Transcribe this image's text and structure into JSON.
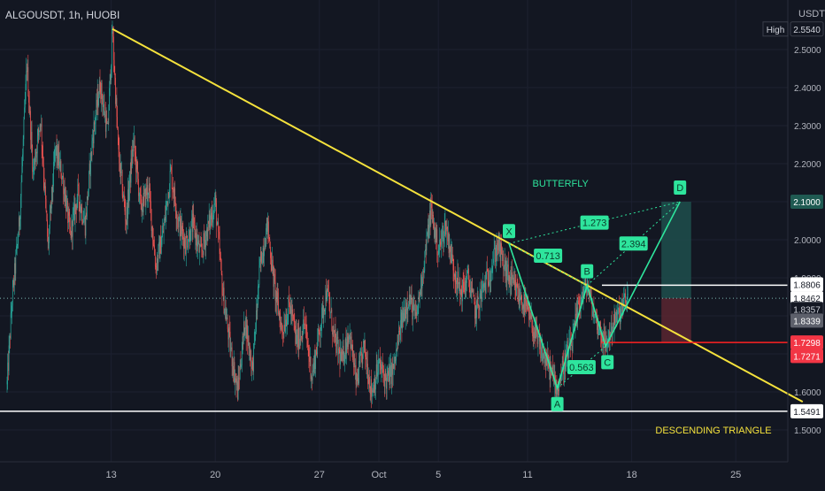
{
  "header": {
    "symbol_line": "ALGOUSDT, 1h, HUOBI",
    "currency": "USDT"
  },
  "colors": {
    "background": "#131722",
    "candle_up": "#26a69a",
    "candle_down": "#ef5350",
    "trendline": "#f5e23c",
    "pattern": "#2ee59d",
    "pattern_label_bg": "#2ee59d",
    "support_line": "#ffffff",
    "stop_line": "#ff2222",
    "target_zone": "#1f4f4c",
    "stop_zone": "#5a2630",
    "axis_text": "#b2b5be"
  },
  "chart_data": {
    "type": "candlestick",
    "title": "ALGOUSDT, 1h, HUOBI",
    "ylim": [
      1.4,
      2.62
    ],
    "y_ticks": [
      1.5,
      1.6,
      1.7,
      1.8,
      1.9,
      2.0,
      2.1,
      2.2,
      2.3,
      2.4,
      2.5
    ],
    "y_tick_labels": [
      "1.5000",
      "1.6000",
      "1.7000",
      "1.8000",
      "1.9000",
      "2.0000",
      "2.1000",
      "2.2000",
      "2.3000",
      "2.4000",
      "2.5000"
    ],
    "x_ticks": [
      "13",
      "20",
      "27",
      "Oct",
      "5",
      "11",
      "18",
      "25"
    ],
    "x_range": [
      "2021-09-06",
      "2021-10-30"
    ],
    "x_tick_dates": [
      "2021-09-13",
      "2021-09-20",
      "2021-09-27",
      "2021-10-01",
      "2021-10-05",
      "2021-10-11",
      "2021-10-18",
      "2021-10-25"
    ],
    "price_path": [
      [
        "2021-09-06T00:00",
        1.62
      ],
      [
        "2021-09-06T08:00",
        1.84
      ],
      [
        "2021-09-06T20:00",
        2.05
      ],
      [
        "2021-09-07T08:00",
        2.46
      ],
      [
        "2021-09-07T18:00",
        2.18
      ],
      [
        "2021-09-08T06:00",
        2.32
      ],
      [
        "2021-09-08T18:00",
        1.98
      ],
      [
        "2021-09-09T06:00",
        2.24
      ],
      [
        "2021-09-09T18:00",
        2.16
      ],
      [
        "2021-09-10T06:00",
        2.01
      ],
      [
        "2021-09-10T18:00",
        2.12
      ],
      [
        "2021-09-11T06:00",
        2.04
      ],
      [
        "2021-09-11T18:00",
        2.27
      ],
      [
        "2021-09-12T06:00",
        2.41
      ],
      [
        "2021-09-12T18:00",
        2.28
      ],
      [
        "2021-09-13T02:00",
        2.55
      ],
      [
        "2021-09-13T12:00",
        2.22
      ],
      [
        "2021-09-14T00:00",
        2.05
      ],
      [
        "2021-09-14T12:00",
        2.26
      ],
      [
        "2021-09-15T00:00",
        2.08
      ],
      [
        "2021-09-15T12:00",
        2.14
      ],
      [
        "2021-09-16T00:00",
        1.93
      ],
      [
        "2021-09-16T12:00",
        2.02
      ],
      [
        "2021-09-17T00:00",
        2.18
      ],
      [
        "2021-09-17T12:00",
        2.05
      ],
      [
        "2021-09-18T00:00",
        1.99
      ],
      [
        "2021-09-18T12:00",
        2.04
      ],
      [
        "2021-09-19T00:00",
        1.96
      ],
      [
        "2021-09-19T12:00",
        2.03
      ],
      [
        "2021-09-20T00:00",
        2.1
      ],
      [
        "2021-09-20T12:00",
        1.86
      ],
      [
        "2021-09-21T00:00",
        1.72
      ],
      [
        "2021-09-21T12:00",
        1.6
      ],
      [
        "2021-09-22T00:00",
        1.79
      ],
      [
        "2021-09-22T12:00",
        1.66
      ],
      [
        "2021-09-23T00:00",
        1.93
      ],
      [
        "2021-09-23T12:00",
        2.04
      ],
      [
        "2021-09-24T00:00",
        1.87
      ],
      [
        "2021-09-24T12:00",
        1.76
      ],
      [
        "2021-09-25T00:00",
        1.83
      ],
      [
        "2021-09-25T12:00",
        1.73
      ],
      [
        "2021-09-26T00:00",
        1.78
      ],
      [
        "2021-09-26T12:00",
        1.64
      ],
      [
        "2021-09-27T00:00",
        1.76
      ],
      [
        "2021-09-27T12:00",
        1.87
      ],
      [
        "2021-09-28T00:00",
        1.74
      ],
      [
        "2021-09-28T12:00",
        1.68
      ],
      [
        "2021-09-29T00:00",
        1.76
      ],
      [
        "2021-09-29T12:00",
        1.62
      ],
      [
        "2021-09-30T00:00",
        1.72
      ],
      [
        "2021-09-30T12:00",
        1.6
      ],
      [
        "2021-10-01T00:00",
        1.67
      ],
      [
        "2021-10-01T12:00",
        1.63
      ],
      [
        "2021-10-02T00:00",
        1.66
      ],
      [
        "2021-10-02T12:00",
        1.78
      ],
      [
        "2021-10-03T00:00",
        1.85
      ],
      [
        "2021-10-03T12:00",
        1.79
      ],
      [
        "2021-10-04T00:00",
        1.93
      ],
      [
        "2021-10-04T12:00",
        2.08
      ],
      [
        "2021-10-05T00:00",
        1.97
      ],
      [
        "2021-10-05T12:00",
        2.04
      ],
      [
        "2021-10-06T00:00",
        1.93
      ],
      [
        "2021-10-06T12:00",
        1.86
      ],
      [
        "2021-10-07T00:00",
        1.9
      ],
      [
        "2021-10-07T12:00",
        1.81
      ],
      [
        "2021-10-08T00:00",
        1.87
      ],
      [
        "2021-10-08T12:00",
        1.92
      ],
      [
        "2021-10-09T00:00",
        1.99
      ],
      [
        "2021-10-09T12:00",
        1.92
      ],
      [
        "2021-10-10T00:00",
        1.88
      ],
      [
        "2021-10-10T12:00",
        1.85
      ],
      [
        "2021-10-11T00:00",
        1.81
      ],
      [
        "2021-10-11T12:00",
        1.75
      ],
      [
        "2021-10-12T00:00",
        1.7
      ],
      [
        "2021-10-12T12:00",
        1.66
      ],
      [
        "2021-10-13T00:00",
        1.61
      ],
      [
        "2021-10-13T12:00",
        1.68
      ],
      [
        "2021-10-14T00:00",
        1.73
      ],
      [
        "2021-10-14T12:00",
        1.84
      ],
      [
        "2021-10-15T00:00",
        1.88
      ],
      [
        "2021-10-15T12:00",
        1.8
      ],
      [
        "2021-10-16T00:00",
        1.75
      ],
      [
        "2021-10-16T06:00",
        1.72
      ],
      [
        "2021-10-16T18:00",
        1.78
      ],
      [
        "2021-10-17T06:00",
        1.81
      ],
      [
        "2021-10-17T18:00",
        1.85
      ]
    ],
    "lines": [
      {
        "name": "descending-trendline",
        "from": [
          "2021-09-13T02:00",
          2.554
        ],
        "to": [
          "2021-10-29T12:00",
          1.574
        ]
      },
      {
        "name": "support-line",
        "price": 1.5491
      },
      {
        "name": "resistance-line",
        "price": 1.8806,
        "from": "2021-10-16T00:00"
      },
      {
        "name": "stop-line",
        "price": 1.7298,
        "from": "2021-10-16T00:00"
      }
    ],
    "current_price": 1.8462,
    "harmonic_pattern": {
      "name": "BUTTERFLY",
      "points": [
        {
          "label": "X",
          "date": "2021-10-09T18:00",
          "price": 1.99
        },
        {
          "label": "A",
          "date": "2021-10-13T00:00",
          "price": 1.61
        },
        {
          "label": "B",
          "date": "2021-10-15T00:00",
          "price": 1.88
        },
        {
          "label": "C",
          "date": "2021-10-16T06:00",
          "price": 1.72
        },
        {
          "label": "D",
          "date": "2021-10-21T06:00",
          "price": 2.1
        }
      ],
      "ratios": [
        "0.713",
        "0.563",
        "2.394",
        "1.273"
      ]
    },
    "position": {
      "entry": 1.8462,
      "target": 2.1,
      "stop": 1.7298,
      "from": "2021-10-20T00:00",
      "to": "2021-10-22T00:00"
    },
    "annotations": [
      "BUTTERFLY",
      "DESCENDING TRIANGLE"
    ],
    "price_labels": [
      {
        "name": "high",
        "prefix": "High",
        "value": "2.5540",
        "price": 2.554
      },
      {
        "name": "target",
        "value": "2.1000",
        "price": 2.1
      },
      {
        "name": "resistance",
        "value": "1.8806",
        "price": 1.8806
      },
      {
        "name": "current",
        "value": "1.8462",
        "price": 1.8462
      },
      {
        "name": "ask",
        "value": "1.8357",
        "price": 1.8357
      },
      {
        "name": "bid",
        "value": "1.8339",
        "price": 1.8339
      },
      {
        "name": "stop",
        "value": "1.7298",
        "price": 1.7298
      },
      {
        "name": "stop-2",
        "value": "1.7271",
        "price": 1.7271
      },
      {
        "name": "support",
        "value": "1.5491",
        "price": 1.5491
      }
    ]
  }
}
